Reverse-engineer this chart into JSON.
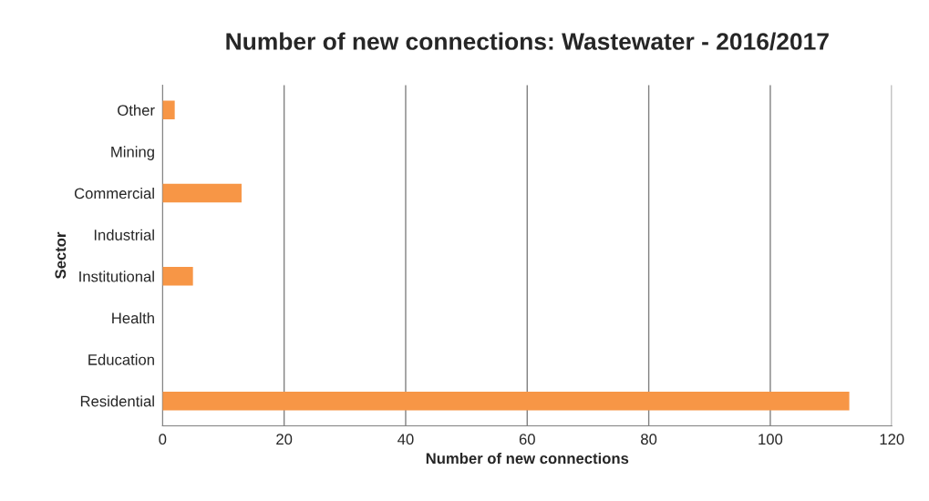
{
  "chart_data": {
    "type": "bar",
    "orientation": "horizontal",
    "title": "Number of new connections: Wastewater - 2016/2017",
    "xlabel": "Number of new connections",
    "ylabel": "Sector",
    "categories": [
      "Other",
      "Mining",
      "Commercial",
      "Industrial",
      "Institutional",
      "Health",
      "Education",
      "Residential"
    ],
    "values": [
      2,
      0,
      13,
      0,
      5,
      0,
      0,
      113
    ],
    "color": "#f79646",
    "xlim": [
      0,
      120
    ],
    "xticks": [
      0,
      20,
      40,
      60,
      80,
      100,
      120
    ],
    "grid": "x",
    "legend": false
  }
}
